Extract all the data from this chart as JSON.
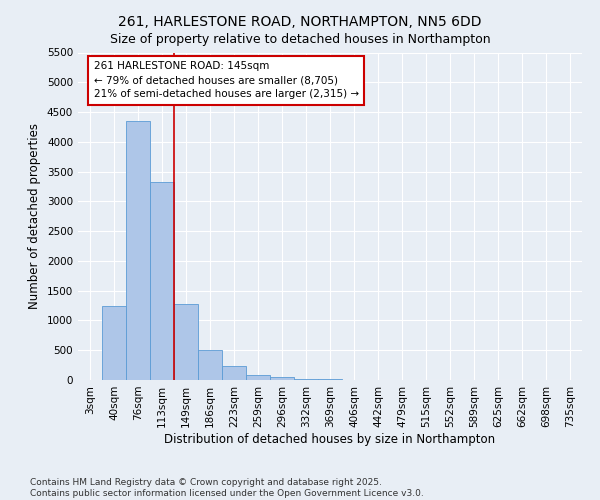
{
  "title_line1": "261, HARLESTONE ROAD, NORTHAMPTON, NN5 6DD",
  "title_line2": "Size of property relative to detached houses in Northampton",
  "xlabel": "Distribution of detached houses by size in Northampton",
  "ylabel": "Number of detached properties",
  "categories": [
    "3sqm",
    "40sqm",
    "76sqm",
    "113sqm",
    "149sqm",
    "186sqm",
    "223sqm",
    "259sqm",
    "296sqm",
    "332sqm",
    "369sqm",
    "406sqm",
    "442sqm",
    "479sqm",
    "515sqm",
    "552sqm",
    "589sqm",
    "625sqm",
    "662sqm",
    "698sqm",
    "735sqm"
  ],
  "values": [
    0,
    1250,
    4350,
    3330,
    1280,
    500,
    230,
    80,
    50,
    20,
    10,
    5,
    0,
    0,
    0,
    0,
    0,
    0,
    0,
    0,
    0
  ],
  "bar_color": "#aec6e8",
  "bar_edge_color": "#5b9bd5",
  "vline_color": "#cc0000",
  "annotation_text": "261 HARLESTONE ROAD: 145sqm\n← 79% of detached houses are smaller (8,705)\n21% of semi-detached houses are larger (2,315) →",
  "annotation_box_color": "#cc0000",
  "ylim": [
    0,
    5500
  ],
  "yticks": [
    0,
    500,
    1000,
    1500,
    2000,
    2500,
    3000,
    3500,
    4000,
    4500,
    5000,
    5500
  ],
  "bg_color": "#e8eef5",
  "plot_bg_color": "#e8eef5",
  "grid_color": "#ffffff",
  "footer_line1": "Contains HM Land Registry data © Crown copyright and database right 2025.",
  "footer_line2": "Contains public sector information licensed under the Open Government Licence v3.0.",
  "title_fontsize": 10,
  "subtitle_fontsize": 9,
  "axis_label_fontsize": 8.5,
  "tick_fontsize": 7.5,
  "annotation_fontsize": 7.5,
  "footer_fontsize": 6.5
}
